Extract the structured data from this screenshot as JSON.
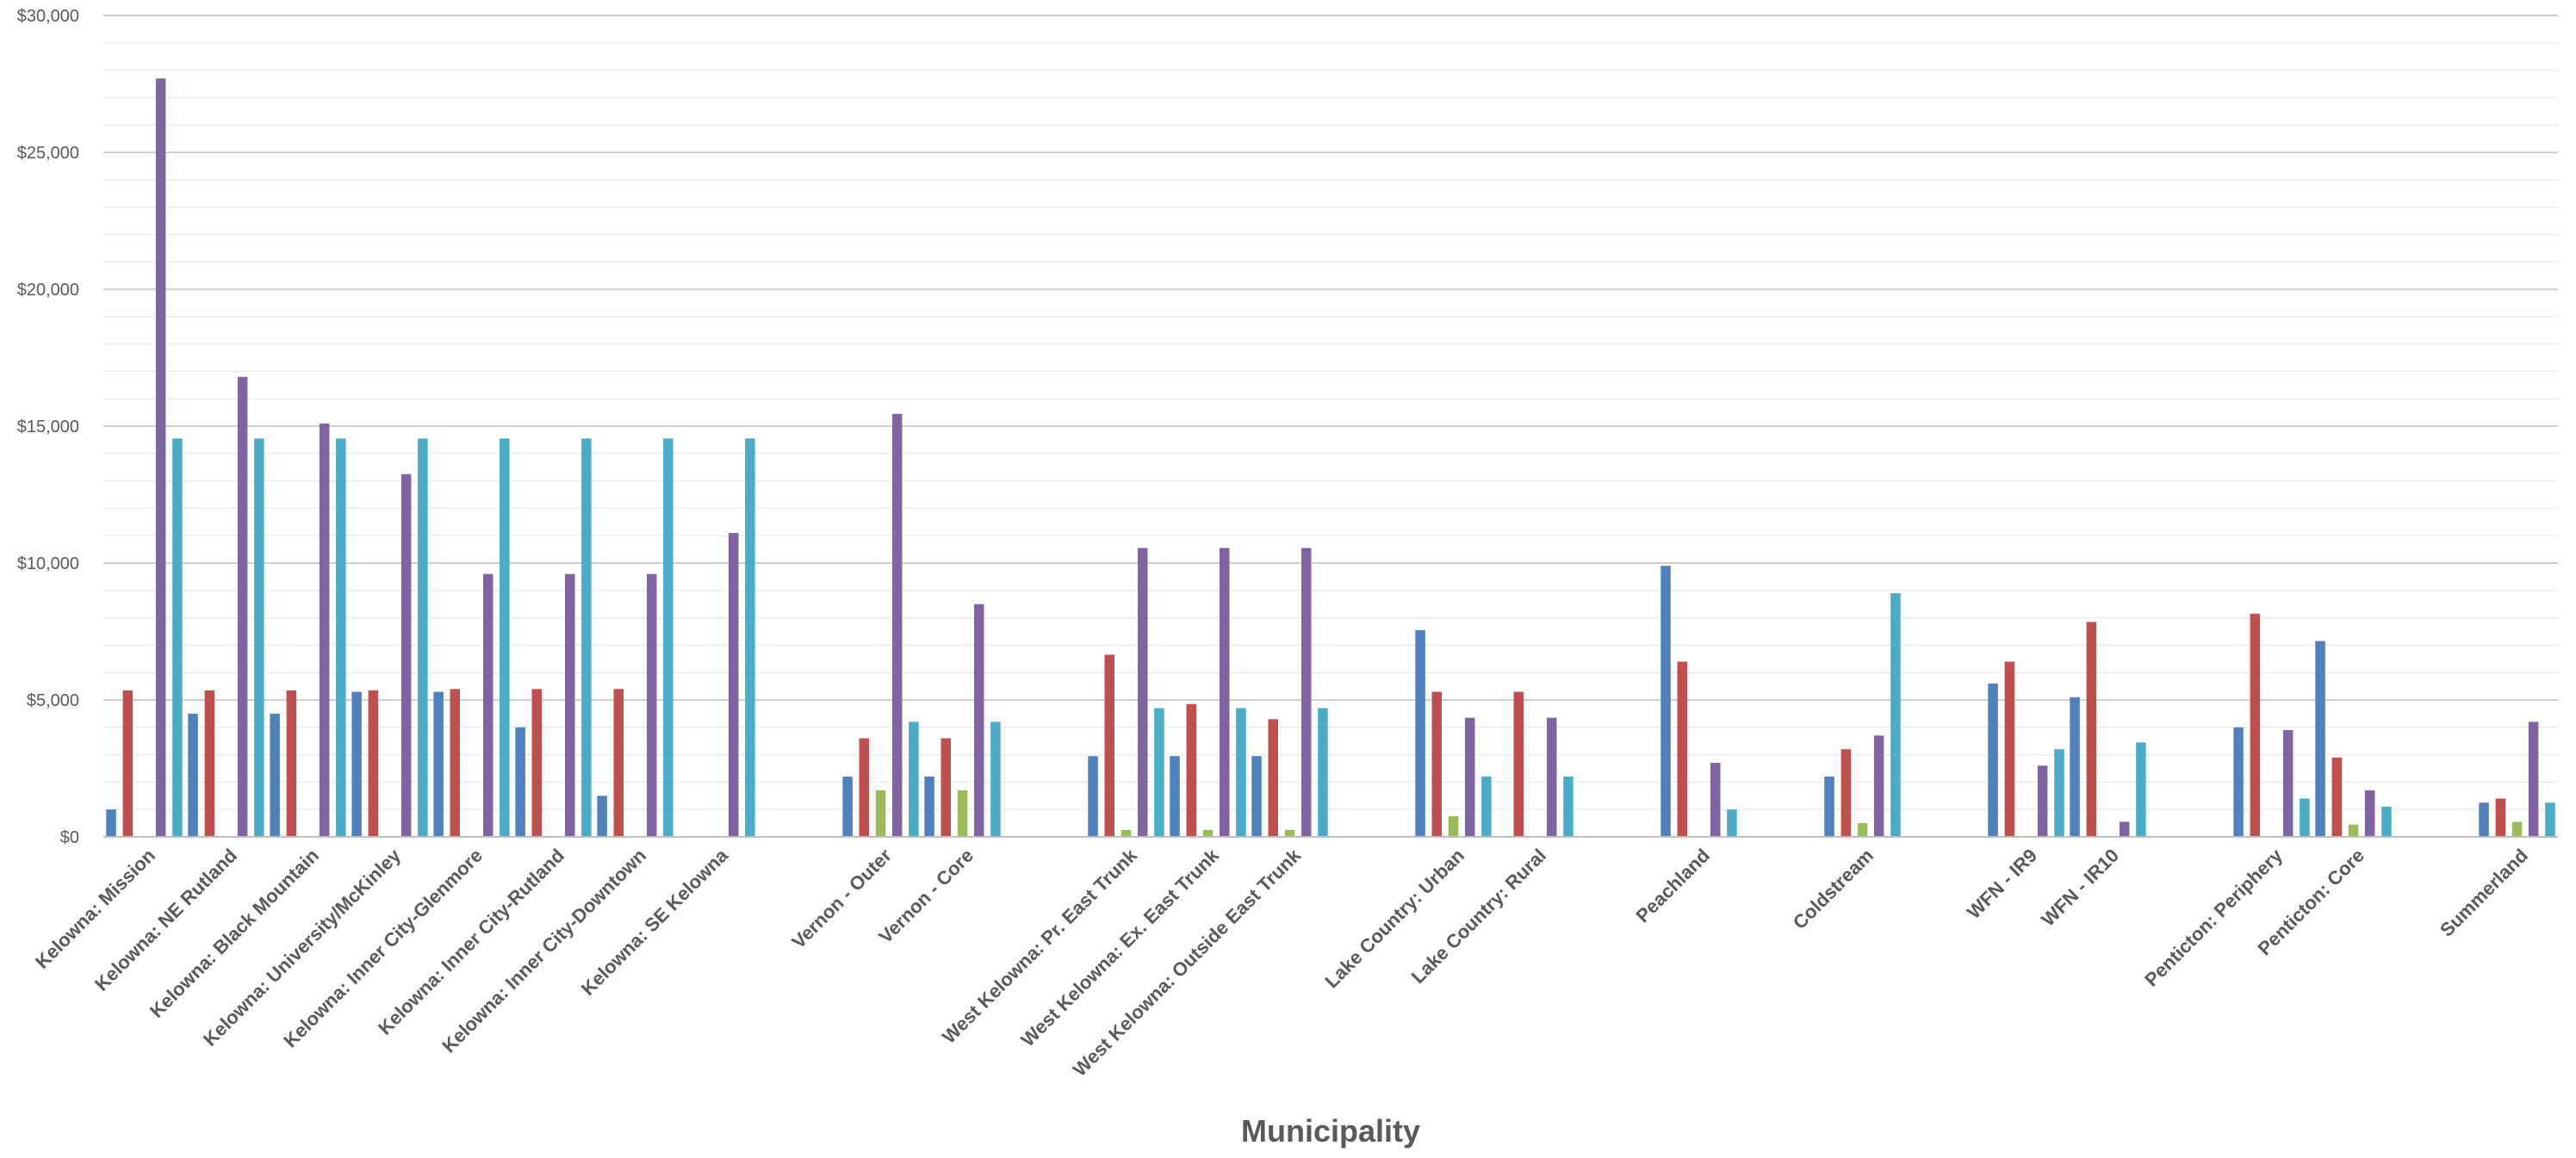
{
  "chart_data": {
    "type": "bar",
    "title": "",
    "xlabel": "Municipality",
    "ylabel": "",
    "ylim": [
      0,
      30000
    ],
    "yticks": [
      0,
      5000,
      10000,
      15000,
      20000,
      25000,
      30000
    ],
    "ytick_labels": [
      "$0",
      "$5,000",
      "$10,000",
      "$15,000",
      "$20,000",
      "$25,000",
      "$30,000"
    ],
    "grid": true,
    "legend": "none",
    "categories": [
      "Kelowna: Mission",
      "Kelowna: NE Rutland",
      "Kelowna: Black Mountain",
      "Kelowna: University/McKinley",
      "Kelowna: Inner City-Glenmore",
      "Kelowna: Inner City-Rutland",
      "Kelowna: Inner City-Downtown",
      "Kelowna: SE Kelowna",
      "",
      "Vernon - Outer",
      "Vernon - Core",
      "",
      "West Kelowna: Pr. East Trunk",
      "West Kelowna: Ex. East Trunk",
      "West Kelowna: Outside East Trunk",
      "",
      "Lake Country: Urban",
      "Lake Country: Rural",
      "",
      "Peachland",
      "",
      "Coldstream",
      "",
      "WFN - IR9",
      "WFN - IR10",
      "",
      "Penticton: Periphery",
      "Penticton: Core",
      "",
      "Summerland"
    ],
    "series": [
      {
        "color": "#4F81BD",
        "values": [
          1000,
          4500,
          4500,
          5300,
          5300,
          4000,
          1500,
          null,
          null,
          2200,
          2200,
          null,
          2950,
          2950,
          2950,
          null,
          7550,
          null,
          null,
          9900,
          null,
          2200,
          null,
          5600,
          5100,
          null,
          4000,
          7150,
          null,
          1250
        ]
      },
      {
        "color": "#C0504D",
        "values": [
          5350,
          5350,
          5350,
          5350,
          5400,
          5400,
          5400,
          null,
          null,
          3600,
          3600,
          null,
          6650,
          4850,
          4300,
          null,
          5300,
          5300,
          null,
          6400,
          null,
          3200,
          null,
          6400,
          7850,
          null,
          8150,
          2900,
          null,
          1400
        ]
      },
      {
        "color": "#9BBB59",
        "values": [
          null,
          null,
          null,
          null,
          null,
          null,
          null,
          null,
          null,
          1700,
          1700,
          null,
          250,
          250,
          250,
          null,
          750,
          null,
          null,
          null,
          null,
          500,
          null,
          null,
          null,
          null,
          null,
          450,
          null,
          550
        ]
      },
      {
        "color": "#8064A2",
        "values": [
          27700,
          16800,
          15100,
          13250,
          9600,
          9600,
          9600,
          11100,
          null,
          15450,
          8500,
          null,
          10550,
          10550,
          10550,
          null,
          4350,
          4350,
          null,
          2700,
          null,
          3700,
          null,
          2600,
          550,
          null,
          3900,
          1700,
          null,
          4200
        ]
      },
      {
        "color": "#4BACC6",
        "values": [
          14550,
          14550,
          14550,
          14550,
          14550,
          14550,
          14550,
          14550,
          null,
          4200,
          4200,
          null,
          4700,
          4700,
          4700,
          null,
          2200,
          2200,
          null,
          1000,
          null,
          8900,
          null,
          3200,
          3450,
          null,
          1400,
          1100,
          null,
          1250
        ]
      }
    ]
  }
}
